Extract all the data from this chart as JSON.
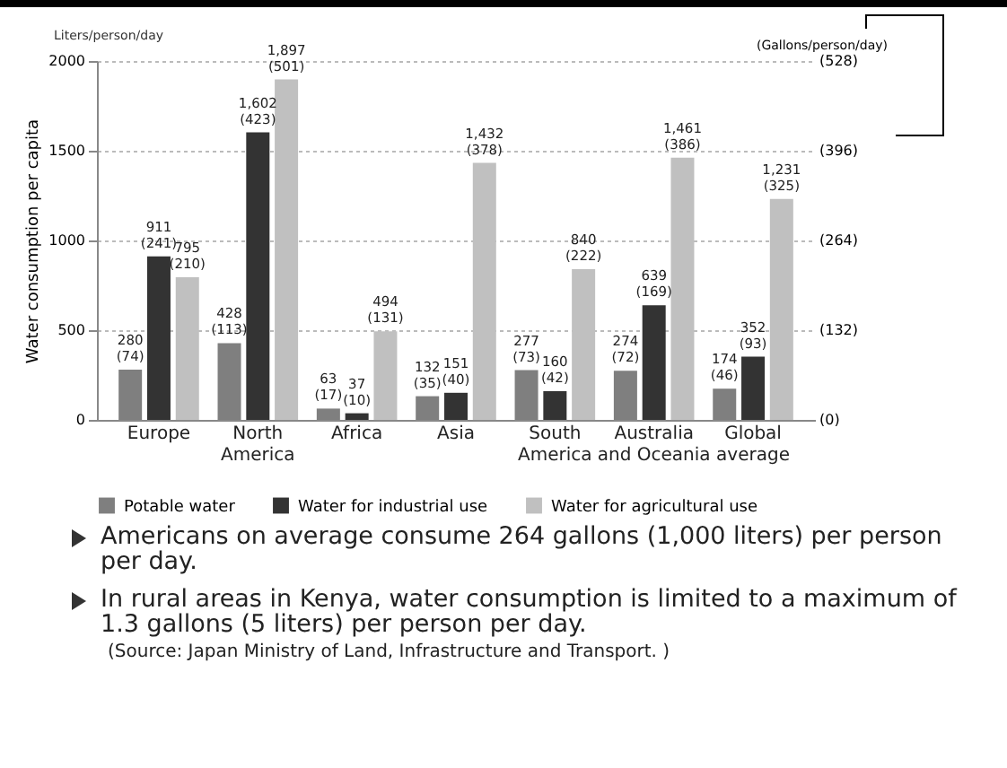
{
  "chart_data": {
    "type": "bar",
    "ylabel": "Water consumption per capita",
    "y2label": "(Gallons/person/day)",
    "annotations": [
      "Liters/person/day",
      "Americans on average consume 264 gallons (1,000 liters) per person per day.",
      "In rural areas in Kenya, water consumption is limited to a maximum of 1.3 gallons (5 liters) per person per day.",
      "(Source: Japan Ministry of Land, Infrastructure and Transport. )"
    ],
    "categories": [
      "Europe",
      "North America",
      "Africa",
      "Asia",
      "South America",
      "Australia and Oceania",
      "Global average"
    ],
    "series": [
      {
        "name": "Potable water",
        "color": "#7f7f7f",
        "values": [
          280,
          428,
          63,
          132,
          277,
          274,
          174
        ],
        "value_labels": [
          "280 (74)",
          "428 (113)",
          "63 (17)",
          "132 (35)",
          "277 (73)",
          "274 (72)",
          "174 (46)"
        ]
      },
      {
        "name": "Water for industrial use",
        "color": "#333333",
        "values": [
          911,
          1602,
          37,
          151,
          160,
          639,
          352
        ],
        "value_labels": [
          "911 (241)",
          "1,602 (423)",
          "37 (10)",
          "151 (40)",
          "160 (42)",
          "639 (169)",
          "352 (93)"
        ]
      },
      {
        "name": "Water for agricultural use",
        "color": "#c0c0c0",
        "values": [
          795,
          1897,
          494,
          1432,
          840,
          1461,
          1231
        ],
        "value_labels": [
          "795 (210)",
          "1,897 (501)",
          "494 (131)",
          "1,432 (378)",
          "840 (222)",
          "1,461 (386)",
          "1,231 (325)"
        ]
      }
    ],
    "ylim": [
      0,
      2000
    ],
    "yticks": [
      0,
      500,
      1000,
      1500,
      2000
    ],
    "y2lim": [
      0,
      528
    ],
    "y2ticks": [
      {
        "value": 0,
        "label": "(0)"
      },
      {
        "value": 132,
        "label": "(132)"
      },
      {
        "value": 264,
        "label": "(264)"
      },
      {
        "value": 396,
        "label": "(396)"
      },
      {
        "value": 528,
        "label": "(528)"
      }
    ],
    "grid": "y",
    "legend": "bottom"
  }
}
